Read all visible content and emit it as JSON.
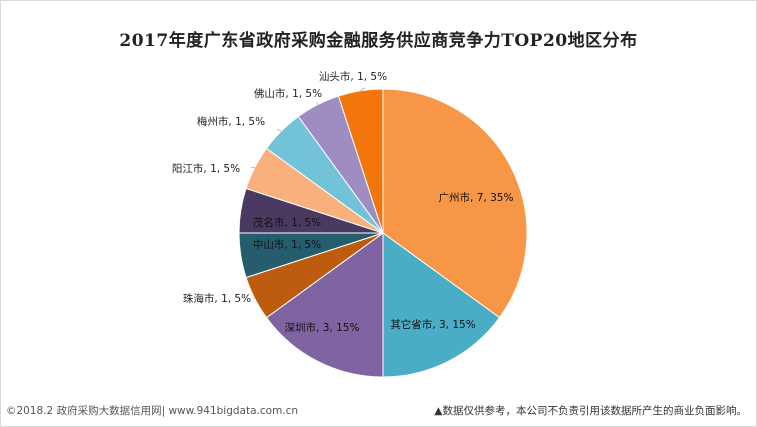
{
  "chart_data": {
    "type": "pie",
    "title": "2017年度广东省政府采购金融服务供应商竞争力TOP20地区分布",
    "legend": "none",
    "slices": [
      {
        "name": "广州市",
        "value": 7,
        "percent": "35%",
        "color": "#F79646",
        "label": "广州市, 7, 35%"
      },
      {
        "name": "其它省市",
        "value": 3,
        "percent": "15%",
        "color": "#4BACC6",
        "label": "其它省市, 3, 15%"
      },
      {
        "name": "深圳市",
        "value": 3,
        "percent": "15%",
        "color": "#8064A2",
        "label": "深圳市, 3, 15%"
      },
      {
        "name": "珠海市",
        "value": 1,
        "percent": "5%",
        "color": "#BD5B0E",
        "label": "珠海市, 1, 5%"
      },
      {
        "name": "中山市",
        "value": 1,
        "percent": "5%",
        "color": "#265D6E",
        "label": "中山市, 1, 5%"
      },
      {
        "name": "茂名市",
        "value": 1,
        "percent": "5%",
        "color": "#4A3A61",
        "label": "茂名市, 1, 5%"
      },
      {
        "name": "阳江市",
        "value": 1,
        "percent": "5%",
        "color": "#FAB07C",
        "label": "阳江市, 1, 5%"
      },
      {
        "name": "梅州市",
        "value": 1,
        "percent": "5%",
        "color": "#72C2D8",
        "label": "梅州市, 1, 5%"
      },
      {
        "name": "佛山市",
        "value": 1,
        "percent": "5%",
        "color": "#9F8CC0",
        "label": "佛山市, 1, 5%"
      },
      {
        "name": "汕头市",
        "value": 1,
        "percent": "5%",
        "color": "#F2760C",
        "label": "汕头市, 1, 5%"
      }
    ]
  },
  "footer": {
    "left": "©2018.2 政府采购大数据信用网| www.941bigdata.com.cn",
    "right": "▲数据仅供参考，本公司不负责引用该数据所产生的商业负面影响。"
  }
}
